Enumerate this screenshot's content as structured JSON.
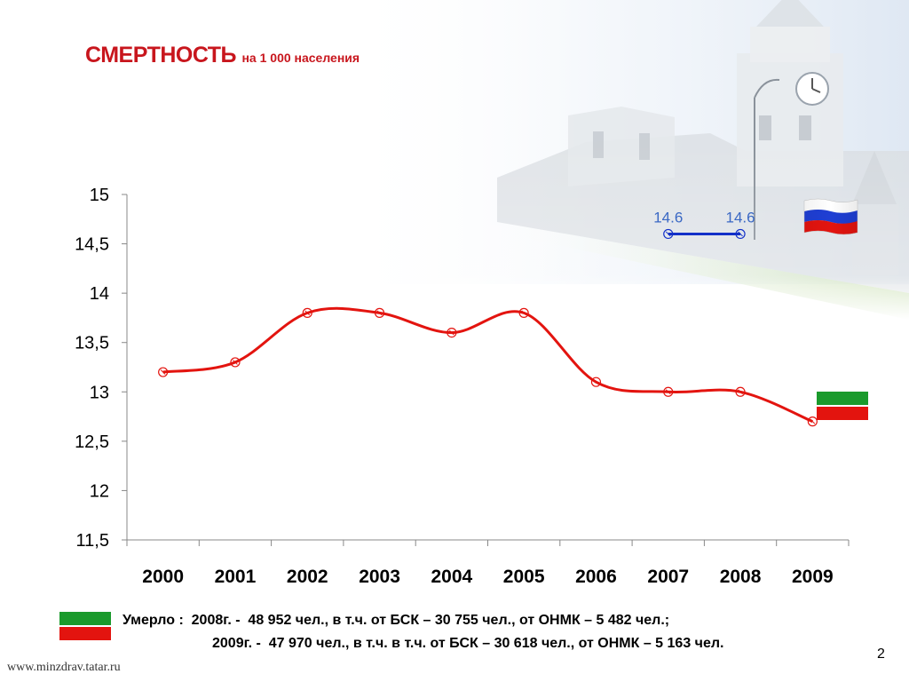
{
  "title": "СМЕРТНОСТЬ",
  "subtitle": "на 1 000 населения",
  "chart_data": {
    "type": "line",
    "categories": [
      "2000",
      "2001",
      "2002",
      "2003",
      "2004",
      "2005",
      "2006",
      "2007",
      "2008",
      "2009"
    ],
    "ylim": [
      11.5,
      15
    ],
    "ytick_labels": [
      "11,5",
      "12",
      "12,5",
      "13",
      "13,5",
      "14",
      "14,5",
      "15"
    ],
    "ytick_values": [
      11.5,
      12,
      12.5,
      13,
      13.5,
      14,
      14.5,
      15
    ],
    "grid": false,
    "series": [
      {
        "values": [
          13.2,
          13.3,
          13.8,
          13.8,
          13.6,
          13.8,
          13.1,
          13.0,
          13.0,
          12.7
        ],
        "color": "#e3140f"
      },
      {
        "x": [
          "2007",
          "2008"
        ],
        "values": [
          14.6,
          14.6
        ],
        "data_labels": [
          "14.6",
          "14.6"
        ],
        "color": "#1230c8"
      }
    ]
  },
  "flags": {
    "russia": {
      "colors": [
        "#ffffff",
        "#1f3fd4",
        "#e3140f"
      ]
    },
    "tatarstan": {
      "colors": [
        "#1a9a2c",
        "#ffffff",
        "#e3140f"
      ]
    }
  },
  "notes": {
    "line1": "Умерло :  2008г. -  48 952 чел., в т.ч. от БСК – 30 755 чел., от ОНМК – 5 482 чел.;",
    "line2": "2009г. -  47 970 чел., в т.ч. в т.ч. от БСК – 30 618 чел., от ОНМК – 5 163 чел."
  },
  "footer": {
    "site": "www.minzdrav.tatar.ru",
    "page_number": "2"
  }
}
